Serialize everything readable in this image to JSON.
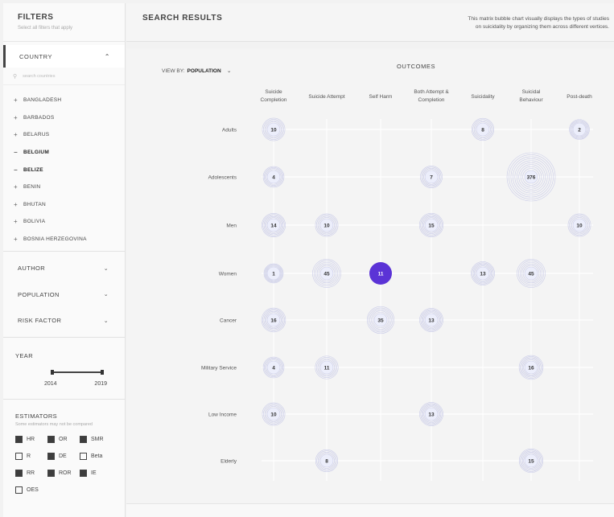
{
  "sidebar": {
    "title": "FILTERS",
    "subtitle": "Select all filters that apply",
    "country": {
      "label": "COUNTRY",
      "search_placeholder": "search countries",
      "items": [
        {
          "symbol": "+",
          "label": "BANGLADESH",
          "selected": false
        },
        {
          "symbol": "+",
          "label": "BARBADOS",
          "selected": false
        },
        {
          "symbol": "+",
          "label": "BELARUS",
          "selected": false
        },
        {
          "symbol": "−",
          "label": "BELGIUM",
          "selected": true
        },
        {
          "symbol": "−",
          "label": "BELIZE",
          "selected": true
        },
        {
          "symbol": "+",
          "label": "BENIN",
          "selected": false
        },
        {
          "symbol": "+",
          "label": "BHUTAN",
          "selected": false
        },
        {
          "symbol": "+",
          "label": "BOLIVIA",
          "selected": false
        },
        {
          "symbol": "+",
          "label": "BOSNIA HERZEGOVINA",
          "selected": false
        }
      ]
    },
    "groups": [
      {
        "label": "AUTHOR"
      },
      {
        "label": "POPULATION"
      },
      {
        "label": "RISK FACTOR"
      }
    ],
    "year": {
      "label": "YEAR",
      "from": "2014",
      "to": "2019"
    },
    "estimators": {
      "label": "ESTIMATORS",
      "note": "Some estimators may not be compared",
      "rows": [
        [
          {
            "label": "HR",
            "checked": true
          },
          {
            "label": "OR",
            "checked": true
          },
          {
            "label": "SMR",
            "checked": true
          }
        ],
        [
          {
            "label": "R",
            "checked": false
          },
          {
            "label": "DE",
            "checked": true
          },
          {
            "label": "Beta",
            "checked": false
          }
        ],
        [
          {
            "label": "RR",
            "checked": true
          },
          {
            "label": "ROR",
            "checked": true
          },
          {
            "label": "IE",
            "checked": true
          }
        ],
        [
          {
            "label": "OES",
            "checked": false
          }
        ]
      ]
    }
  },
  "header": {
    "title": "SEARCH RESULTS",
    "description_line1": "This matrix bubble chart visually displays the types of studies",
    "description_line2": "on suicidality by organizing them across different vertices."
  },
  "controls": {
    "view_by_label": "VIEW BY:",
    "view_by_value": "POPULATION",
    "outcomes_title": "OUTCOMES"
  },
  "colors": {
    "highlight": "#5b33d6",
    "bubble_ring": "#c9cbe8",
    "bubble_fill": "#eceefb",
    "grid": "#ffffff"
  },
  "chart_data": {
    "type": "bubble-matrix",
    "columns": [
      [
        "Suicide",
        "Completion"
      ],
      [
        "Suicide Attempt"
      ],
      [
        "Self Harm"
      ],
      [
        "Both Attempt &",
        "Completion"
      ],
      [
        "Suicidality"
      ],
      [
        "Suicidal",
        "Behaviour"
      ],
      [
        "Post-death"
      ]
    ],
    "rows": [
      "Adults",
      "Adolescents",
      "Men",
      "Women",
      "Cancer",
      "Military Service",
      "Low Income",
      "Elderly"
    ],
    "cells": [
      {
        "row": 0,
        "col": 0,
        "value": 10
      },
      {
        "row": 0,
        "col": 4,
        "value": 8
      },
      {
        "row": 0,
        "col": 6,
        "value": 2
      },
      {
        "row": 1,
        "col": 0,
        "value": 4
      },
      {
        "row": 1,
        "col": 3,
        "value": 7
      },
      {
        "row": 1,
        "col": 5,
        "value": 376
      },
      {
        "row": 2,
        "col": 0,
        "value": 14
      },
      {
        "row": 2,
        "col": 1,
        "value": 10
      },
      {
        "row": 2,
        "col": 3,
        "value": 15
      },
      {
        "row": 2,
        "col": 6,
        "value": 10
      },
      {
        "row": 3,
        "col": 0,
        "value": 1
      },
      {
        "row": 3,
        "col": 1,
        "value": 45
      },
      {
        "row": 3,
        "col": 2,
        "value": 11,
        "highlighted": true
      },
      {
        "row": 3,
        "col": 4,
        "value": 13
      },
      {
        "row": 3,
        "col": 5,
        "value": 45
      },
      {
        "row": 4,
        "col": 0,
        "value": 16
      },
      {
        "row": 4,
        "col": 2,
        "value": 35
      },
      {
        "row": 4,
        "col": 3,
        "value": 13
      },
      {
        "row": 5,
        "col": 0,
        "value": 4
      },
      {
        "row": 5,
        "col": 1,
        "value": 11
      },
      {
        "row": 5,
        "col": 5,
        "value": 16
      },
      {
        "row": 6,
        "col": 0,
        "value": 10
      },
      {
        "row": 6,
        "col": 3,
        "value": 13
      },
      {
        "row": 7,
        "col": 1,
        "value": 8
      },
      {
        "row": 7,
        "col": 5,
        "value": 15
      }
    ]
  }
}
